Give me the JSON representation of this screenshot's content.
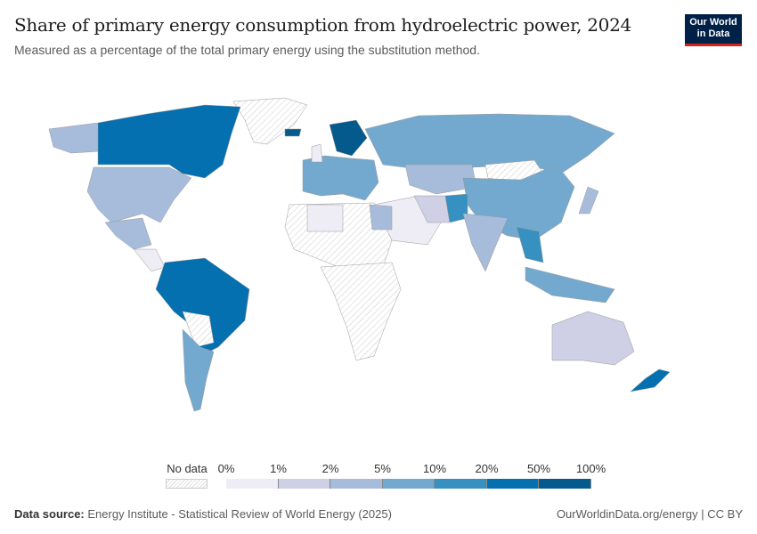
{
  "title": "Share of primary energy consumption from hydroelectric power, 2024",
  "subtitle": "Measured as a percentage of the total primary energy using the substitution method.",
  "logo": {
    "line1": "Our World",
    "line2": "in Data",
    "bg": "#002147",
    "accent": "#ce261e"
  },
  "legend": {
    "no_data": "No data",
    "ticks": [
      "0%",
      "1%",
      "2%",
      "5%",
      "10%",
      "20%",
      "50%",
      "100%"
    ],
    "colors": [
      "#eeedf5",
      "#cfcfe5",
      "#a7bcdb",
      "#74a9cf",
      "#3690c0",
      "#0570b0",
      "#045a8d"
    ]
  },
  "footer": {
    "source_label": "Data source:",
    "source": "Energy Institute - Statistical Review of World Energy (2025)",
    "right": "OurWorldinData.org/energy | CC BY"
  }
}
